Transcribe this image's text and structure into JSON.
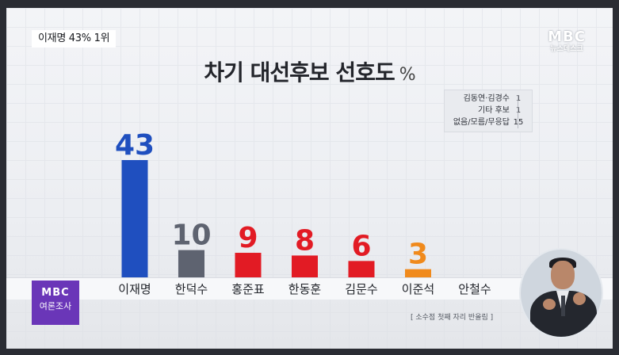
{
  "headline": "이재명 43% 1위",
  "logo": {
    "main": "MBC",
    "sub": "뉴스데스크"
  },
  "poll_logo": {
    "main": "MBC",
    "sub": "여론조사"
  },
  "footnote": "[ 소수점 첫째 자리 반올림 ]",
  "others": [
    {
      "label": "김동연·김경수",
      "value": "1"
    },
    {
      "label": "기타 후보",
      "value": "1"
    },
    {
      "label": "없음/모름/무응답",
      "value": "15"
    }
  ],
  "colors": {
    "blue": "#1f4fbf",
    "gray": "#5e6370",
    "red": "#e21b24",
    "orange": "#f08a1c",
    "title": "#23252b"
  },
  "chart_data": {
    "type": "bar",
    "title": "차기 대선후보 선호도",
    "unit": "%",
    "categories": [
      "이재명",
      "한덕수",
      "홍준표",
      "한동훈",
      "김문수",
      "이준석",
      "안철수"
    ],
    "values": [
      43,
      10,
      9,
      8,
      6,
      3,
      null
    ],
    "value_labels": [
      "43",
      "10",
      "9",
      "8",
      "6",
      "3",
      ""
    ],
    "bar_colors": [
      "#1f4fbf",
      "#5e6370",
      "#e21b24",
      "#e21b24",
      "#e21b24",
      "#f08a1c",
      "#e21b24"
    ],
    "label_colors": [
      "#1f4fbf",
      "#5e6370",
      "#e21b24",
      "#e21b24",
      "#e21b24",
      "#f08a1c",
      "#e21b24"
    ],
    "ylim": [
      0,
      43
    ],
    "grid": true,
    "legend": "none"
  }
}
